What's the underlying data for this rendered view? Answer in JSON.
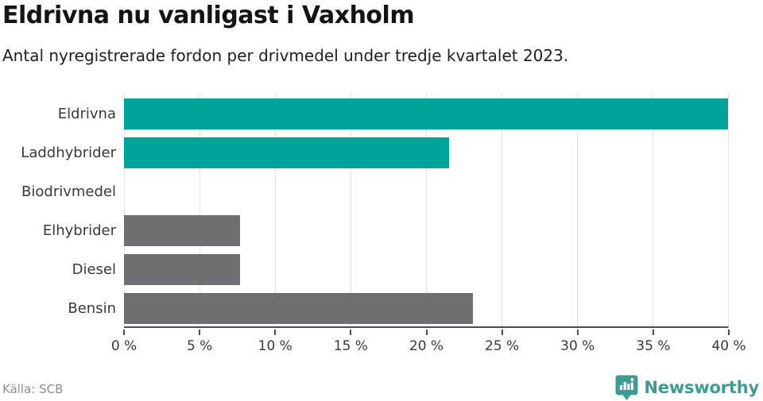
{
  "header": {
    "title": "Eldrivna nu vanligast i Vaxholm",
    "subtitle": "Antal nyregistrerade fordon per drivmedel under tredje kvartalet 2023."
  },
  "footer": {
    "source": "Källa: SCB",
    "brand_name": "Newsworthy",
    "brand_icon": "newsworthy-bar-chart-speech-bubble-icon"
  },
  "colors": {
    "bar_teal": "#00A39B",
    "bar_gray": "#6E6E73",
    "brand_teal": "#3E9B94",
    "gridline": "#E3E3E3",
    "axis": "#4D4D4D",
    "title_text": "#141414",
    "label_text": "#3A3A3A",
    "source_text": "#8E8E93"
  },
  "chart_data": {
    "type": "bar",
    "orientation": "horizontal",
    "title": "Eldrivna nu vanligast i Vaxholm",
    "subtitle": "Antal nyregistrerade fordon per drivmedel under tredje kvartalet 2023.",
    "categories": [
      "Eldrivna",
      "Laddhybrider",
      "Biodrivmedel",
      "Elhybrider",
      "Diesel",
      "Bensin"
    ],
    "values": [
      40.0,
      21.5,
      0,
      7.7,
      7.7,
      23.1
    ],
    "unit": "%",
    "bar_colors": [
      "#00A39B",
      "#00A39B",
      "#00A39B",
      "#6E6E73",
      "#6E6E73",
      "#6E6E73"
    ],
    "xlim": [
      0,
      40
    ],
    "x_ticks": [
      "0 %",
      "5 %",
      "10 %",
      "15 %",
      "20 %",
      "25 %",
      "30 %",
      "35 %",
      "40 %"
    ],
    "grid": true,
    "legend": false
  }
}
